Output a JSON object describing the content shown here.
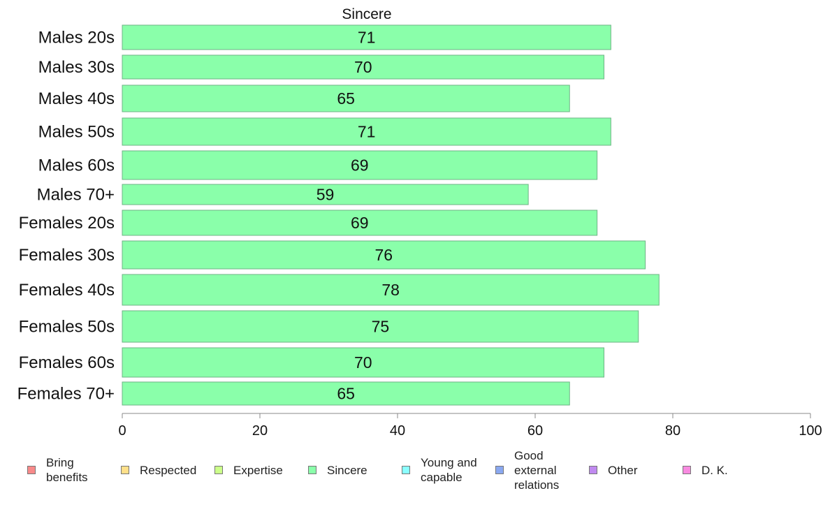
{
  "chart_data": {
    "type": "bar",
    "orientation": "horizontal",
    "title": "Sincere",
    "categories": [
      "Males 20s",
      "Males 30s",
      "Males 40s",
      "Males 50s",
      "Males 60s",
      "Males 70+",
      "Females 20s",
      "Females 30s",
      "Females 40s",
      "Females 50s",
      "Females 60s",
      "Females 70+"
    ],
    "series": [
      {
        "name": "Sincere",
        "values": [
          71,
          70,
          65,
          71,
          69,
          59,
          69,
          76,
          78,
          75,
          70,
          65
        ]
      }
    ],
    "xlim": [
      0,
      100
    ],
    "xticks": [
      0,
      20,
      40,
      60,
      80,
      100
    ],
    "grid": false,
    "bar_color": "#8AFFAA",
    "legend_position": "bottom",
    "legend": [
      {
        "label": "Bring\nbenefits",
        "color": "#F88A8A"
      },
      {
        "label": "Respected",
        "color": "#FFE08A"
      },
      {
        "label": "Expertise",
        "color": "#CCFF8A"
      },
      {
        "label": "Sincere",
        "color": "#8AFFAA"
      },
      {
        "label": "Young and\ncapable",
        "color": "#8AFFFF"
      },
      {
        "label": "Good\nexternal\nrelations",
        "color": "#8AA8F0"
      },
      {
        "label": "Other",
        "color": "#C08AF0"
      },
      {
        "label": "D. K.",
        "color": "#F88AE0"
      }
    ]
  }
}
